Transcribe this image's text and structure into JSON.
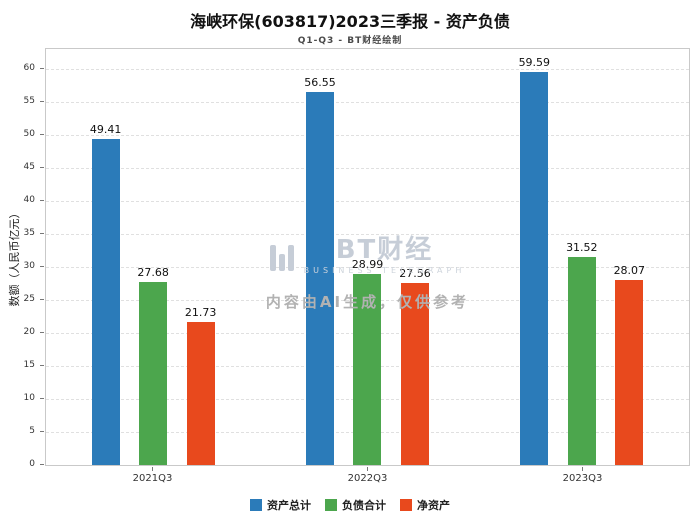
{
  "watermark": {
    "logo_text": "BT财经",
    "logo_subtext": "BUSINESS TELEGRAPH",
    "disclaimer": "内容由AI生成，仅供参考"
  },
  "chart_data": {
    "type": "bar",
    "title": "海峡环保(603817)2023三季报 - 资产负债",
    "subtitle": "Q1-Q3 - BT财经绘制",
    "ylabel": "数额（人民币亿元）",
    "xlabel": "",
    "categories": [
      "2021Q3",
      "2022Q3",
      "2023Q3"
    ],
    "series": [
      {
        "name": "资产总计",
        "color": "#2b7bb9",
        "values": [
          49.41,
          56.55,
          59.59
        ]
      },
      {
        "name": "负债合计",
        "color": "#4ca64d",
        "values": [
          27.68,
          28.99,
          31.52
        ]
      },
      {
        "name": "净资产",
        "color": "#e8491d",
        "values": [
          21.73,
          27.56,
          28.07
        ]
      }
    ],
    "ylim": [
      0,
      63
    ],
    "yticks": [
      0,
      5,
      10,
      15,
      20,
      25,
      30,
      35,
      40,
      45,
      50,
      55,
      60
    ],
    "grid": true,
    "legend_position": "bottom"
  }
}
